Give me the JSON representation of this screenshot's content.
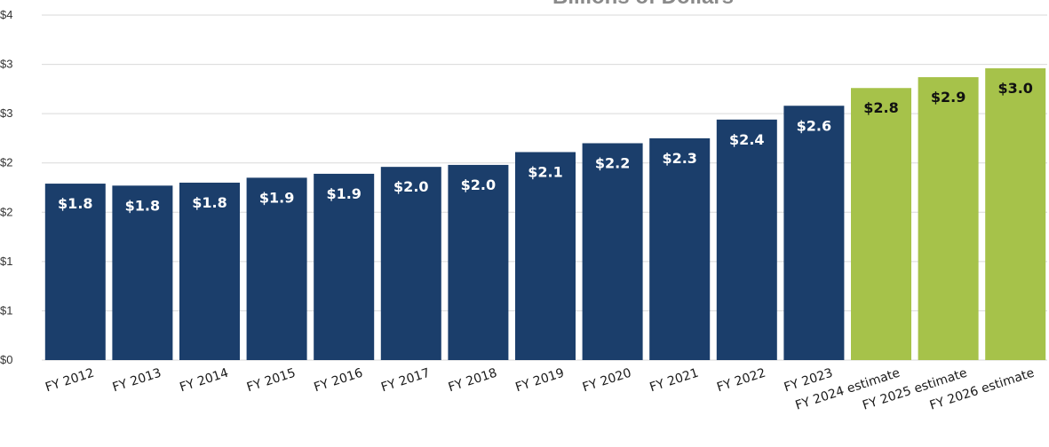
{
  "chart_data": {
    "type": "bar",
    "title": "Billions of Dollars",
    "categories": [
      "FY 2012",
      "FY 2013",
      "FY 2014",
      "FY 2015",
      "FY 2016",
      "FY 2017",
      "FY 2018",
      "FY 2019",
      "FY 2020",
      "FY 2021",
      "FY 2022",
      "FY 2023",
      "FY 2024 estimate",
      "FY 2025 estimate",
      "FY 2026 estimate"
    ],
    "values": [
      1.79,
      1.77,
      1.8,
      1.85,
      1.89,
      1.96,
      1.98,
      2.11,
      2.2,
      2.25,
      2.44,
      2.58,
      2.76,
      2.87,
      2.96
    ],
    "data_labels": [
      "$1.8",
      "$1.8",
      "$1.8",
      "$1.9",
      "$1.9",
      "$2.0",
      "$2.0",
      "$2.1",
      "$2.2",
      "$2.3",
      "$2.4",
      "$2.6",
      "$2.8",
      "$2.9",
      "$3.0"
    ],
    "bar_status": [
      "actual",
      "actual",
      "actual",
      "actual",
      "actual",
      "actual",
      "actual",
      "actual",
      "actual",
      "actual",
      "actual",
      "actual",
      "estimate",
      "estimate",
      "estimate"
    ],
    "y_ticks": [
      0,
      0.5,
      1.0,
      1.5,
      2.0,
      2.5,
      3.0,
      3.5
    ],
    "y_tick_labels": [
      "$0",
      "$1",
      "$1",
      "$2",
      "$2",
      "$3",
      "$3",
      "$4"
    ],
    "ylim": [
      0,
      3.5
    ],
    "grid": true,
    "colors": {
      "actual": "#1b3e6b",
      "estimate": "#a6c24a",
      "grid": "#d9d9d9"
    }
  }
}
